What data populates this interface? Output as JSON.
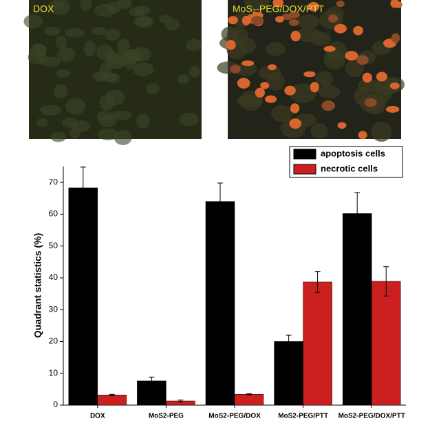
{
  "panels": [
    {
      "label": "DOX"
    },
    {
      "label": "MoS₂-PEG/DOX/PTT"
    }
  ],
  "chart_data": {
    "type": "bar",
    "y_label": "Quadrant statistics (%)",
    "categories": [
      "DOX",
      "MoS2-PEG",
      "MoS2-PEG/DOX",
      "MoS2-PEG/PTT",
      "MoS2-PEG/DOX/PTT"
    ],
    "series": [
      {
        "name": "apoptosis cells",
        "color": "#000000",
        "values": [
          68.3,
          7.6,
          64.0,
          20.0,
          60.2
        ],
        "errors": [
          6.5,
          1.2,
          5.8,
          2.0,
          6.6
        ]
      },
      {
        "name": "necrotic cells",
        "color": "#cc1f1f",
        "values": [
          3.2,
          1.3,
          3.4,
          38.7,
          38.9
        ],
        "errors": [
          0.2,
          0.3,
          0.2,
          3.3,
          4.6
        ]
      }
    ],
    "ylim": [
      0,
      75
    ],
    "yticks": [
      0,
      10,
      20,
      30,
      40,
      50,
      60,
      70
    ],
    "legend": "upper right"
  }
}
